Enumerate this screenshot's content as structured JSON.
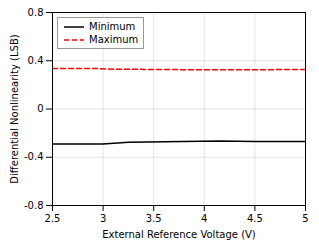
{
  "chart_data": {
    "type": "line",
    "xlabel": "External Reference Voltage (V)",
    "ylabel": "Differential Nonlinearity (LSB)",
    "xlim": [
      2.5,
      5.0
    ],
    "ylim": [
      -0.8,
      0.8
    ],
    "xticks": [
      2.5,
      3,
      3.5,
      4,
      4.5,
      5
    ],
    "yticks": [
      -0.8,
      -0.4,
      0,
      0.4,
      0.8
    ],
    "series": [
      {
        "name": "Minimum",
        "color": "#000000",
        "line_style": "solid",
        "x": [
          2.5,
          3.0,
          3.25,
          4.15,
          4.5,
          5.0
        ],
        "values": [
          -0.29,
          -0.29,
          -0.275,
          -0.265,
          -0.27,
          -0.27
        ]
      },
      {
        "name": "Maximum",
        "color": "#ff0000",
        "line_style": "dashed",
        "x": [
          2.5,
          2.95,
          3.1,
          3.5,
          4.0,
          4.5,
          5.0
        ],
        "values": [
          0.335,
          0.335,
          0.33,
          0.328,
          0.325,
          0.326,
          0.327
        ]
      }
    ],
    "grid": true,
    "legend": "upper left"
  }
}
